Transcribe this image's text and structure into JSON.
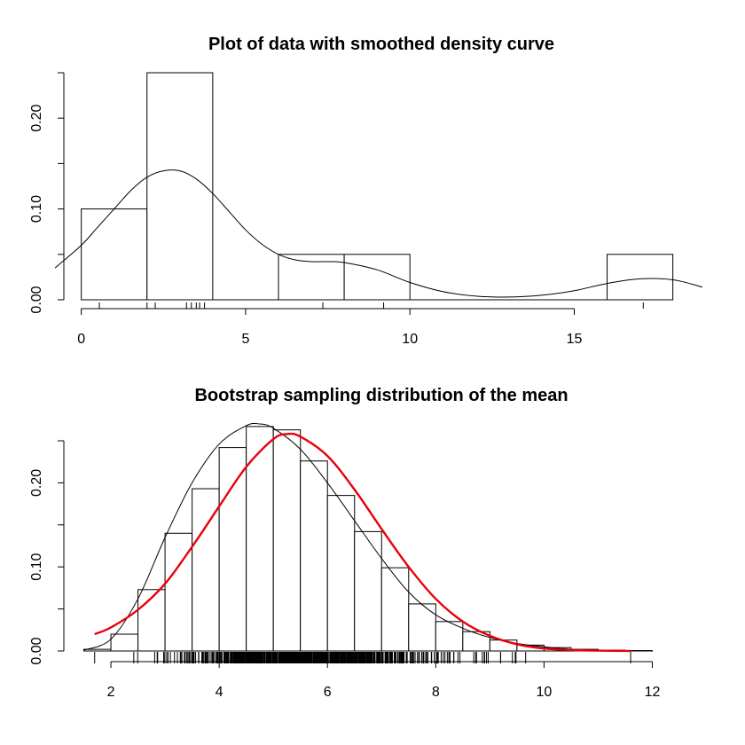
{
  "chart_data": [
    {
      "type": "bar",
      "title": "Plot of data with smoothed density curve",
      "xlabel": "",
      "ylabel": "",
      "xlim": [
        -0.8,
        18.9
      ],
      "ylim": [
        0,
        0.25
      ],
      "x_ticks": [
        0,
        5,
        10,
        15
      ],
      "x_tick_labels": [
        "0",
        "5",
        "10",
        "15"
      ],
      "y_ticks": [
        0.0,
        0.05,
        0.1,
        0.15,
        0.2,
        0.25
      ],
      "y_tick_labels": [
        "0.00",
        "",
        "0.10",
        "",
        "0.20",
        ""
      ],
      "bins": [
        {
          "x0": 0,
          "x1": 2,
          "density": 0.1
        },
        {
          "x0": 2,
          "x1": 4,
          "density": 0.25
        },
        {
          "x0": 4,
          "x1": 6,
          "density": 0.0
        },
        {
          "x0": 6,
          "x1": 8,
          "density": 0.05
        },
        {
          "x0": 8,
          "x1": 10,
          "density": 0.05
        },
        {
          "x0": 10,
          "x1": 12,
          "density": 0.0
        },
        {
          "x0": 12,
          "x1": 14,
          "density": 0.0
        },
        {
          "x0": 14,
          "x1": 16,
          "density": 0.0
        },
        {
          "x0": 16,
          "x1": 18,
          "density": 0.05
        }
      ],
      "density_curve": {
        "x": [
          -0.8,
          0,
          0.5,
          1,
          1.5,
          2,
          2.5,
          3,
          3.5,
          4,
          4.5,
          5,
          5.5,
          6,
          6.5,
          7,
          7.5,
          8,
          9,
          10,
          11,
          12,
          13,
          14,
          15,
          16,
          17,
          18,
          18.9
        ],
        "y": [
          0.035,
          0.06,
          0.08,
          0.1,
          0.12,
          0.135,
          0.142,
          0.142,
          0.133,
          0.117,
          0.097,
          0.077,
          0.061,
          0.05,
          0.044,
          0.042,
          0.042,
          0.041,
          0.033,
          0.019,
          0.009,
          0.004,
          0.003,
          0.005,
          0.01,
          0.018,
          0.023,
          0.022,
          0.014
        ]
      },
      "rug": [
        0.55,
        2.0,
        2.25,
        3.2,
        3.35,
        3.5,
        3.6,
        3.75,
        7.35,
        9.2,
        17.1
      ],
      "grid": false
    },
    {
      "type": "bar",
      "title": "Bootstrap sampling distribution of the mean",
      "xlabel": "",
      "ylabel": "",
      "xlim": [
        1.0,
        12.5
      ],
      "ylim": [
        0,
        0.25
      ],
      "x_ticks": [
        2,
        4,
        6,
        8,
        10,
        12
      ],
      "x_tick_labels": [
        "2",
        "4",
        "6",
        "8",
        "10",
        "12"
      ],
      "y_ticks": [
        0.0,
        0.05,
        0.1,
        0.15,
        0.2,
        0.25
      ],
      "y_tick_labels": [
        "0.00",
        "",
        "0.10",
        "",
        "0.20",
        ""
      ],
      "bins": [
        {
          "x0": 1.5,
          "x1": 2.0,
          "density": 0.002
        },
        {
          "x0": 2.0,
          "x1": 2.5,
          "density": 0.02
        },
        {
          "x0": 2.5,
          "x1": 3.0,
          "density": 0.073
        },
        {
          "x0": 3.0,
          "x1": 3.5,
          "density": 0.14
        },
        {
          "x0": 3.5,
          "x1": 4.0,
          "density": 0.193
        },
        {
          "x0": 4.0,
          "x1": 4.5,
          "density": 0.242
        },
        {
          "x0": 4.5,
          "x1": 5.0,
          "density": 0.267
        },
        {
          "x0": 5.0,
          "x1": 5.5,
          "density": 0.263
        },
        {
          "x0": 5.5,
          "x1": 6.0,
          "density": 0.226
        },
        {
          "x0": 6.0,
          "x1": 6.5,
          "density": 0.185
        },
        {
          "x0": 6.5,
          "x1": 7.0,
          "density": 0.142
        },
        {
          "x0": 7.0,
          "x1": 7.5,
          "density": 0.099
        },
        {
          "x0": 7.5,
          "x1": 8.0,
          "density": 0.056
        },
        {
          "x0": 8.0,
          "x1": 8.5,
          "density": 0.035
        },
        {
          "x0": 8.5,
          "x1": 9.0,
          "density": 0.023
        },
        {
          "x0": 9.0,
          "x1": 9.5,
          "density": 0.013
        },
        {
          "x0": 9.5,
          "x1": 10.0,
          "density": 0.007
        },
        {
          "x0": 10.0,
          "x1": 10.5,
          "density": 0.004
        },
        {
          "x0": 10.5,
          "x1": 11.0,
          "density": 0.002
        },
        {
          "x0": 11.0,
          "x1": 11.5,
          "density": 0.001
        },
        {
          "x0": 11.5,
          "x1": 12.0,
          "density": 0.0005
        }
      ],
      "density_curve": {
        "x": [
          1.5,
          2.0,
          2.5,
          3.0,
          3.5,
          4.0,
          4.5,
          4.75,
          5.0,
          5.5,
          6.0,
          6.5,
          7.0,
          7.5,
          8.0,
          8.5,
          9.0,
          9.5,
          10.0,
          10.5,
          11.0,
          11.5
        ],
        "y": [
          0.001,
          0.014,
          0.062,
          0.135,
          0.2,
          0.246,
          0.268,
          0.27,
          0.265,
          0.24,
          0.2,
          0.155,
          0.11,
          0.07,
          0.043,
          0.027,
          0.016,
          0.009,
          0.005,
          0.002,
          0.001,
          0.0005
        ]
      },
      "normal_curve": {
        "color": "#e8000b",
        "x": [
          1.7,
          2.0,
          2.5,
          3.0,
          3.5,
          4.0,
          4.5,
          5.0,
          5.25,
          5.5,
          6.0,
          6.5,
          7.0,
          7.5,
          8.0,
          8.5,
          9.0,
          9.5,
          10.0,
          10.5,
          11.0,
          11.6
        ],
        "y": [
          0.02,
          0.028,
          0.049,
          0.08,
          0.124,
          0.172,
          0.219,
          0.252,
          0.258,
          0.255,
          0.232,
          0.192,
          0.145,
          0.1,
          0.062,
          0.035,
          0.018,
          0.008,
          0.003,
          0.0012,
          0.0004,
          0.0001
        ]
      },
      "rug_range": [
        1.7,
        11.6
      ],
      "grid": false
    }
  ]
}
